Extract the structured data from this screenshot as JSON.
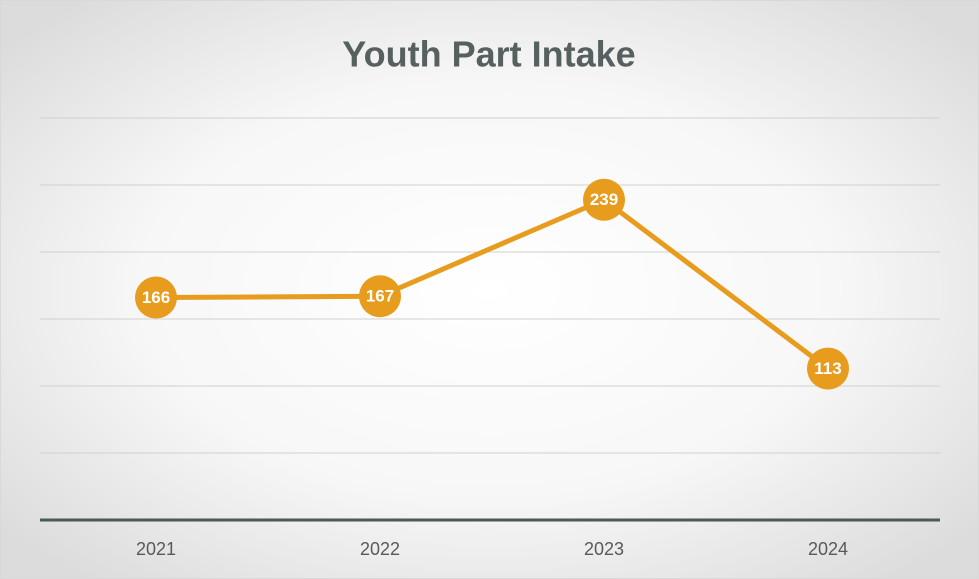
{
  "chart_data": {
    "type": "line",
    "title": "Youth Part Intake",
    "categories": [
      "2021",
      "2022",
      "2023",
      "2024"
    ],
    "values": [
      166,
      167,
      239,
      113
    ],
    "color": "#e89c1e",
    "ylim": [
      0,
      300
    ],
    "yticks": [
      0,
      50,
      100,
      150,
      200,
      250,
      300
    ],
    "grid": true
  }
}
